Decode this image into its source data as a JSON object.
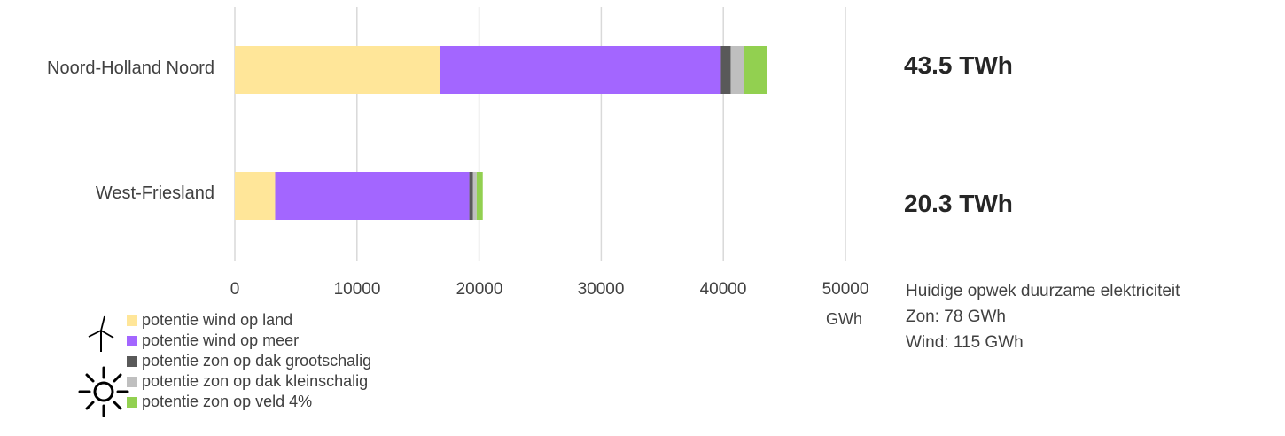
{
  "chart_data": {
    "type": "bar",
    "orientation": "horizontal",
    "stacked": true,
    "categories": [
      "Noord-Holland Noord",
      "West-Friesland"
    ],
    "series": [
      {
        "name": "potentie wind op land",
        "color": "#FFE699",
        "values": [
          16800,
          3300
        ]
      },
      {
        "name": "potentie wind op meer",
        "color": "#A366FF",
        "values": [
          23000,
          15900
        ]
      },
      {
        "name": "potentie zon op dak grootschalig",
        "color": "#595959",
        "values": [
          800,
          300
        ]
      },
      {
        "name": "potentie zon op dak kleinschalig",
        "color": "#BFBFBF",
        "values": [
          1100,
          300
        ]
      },
      {
        "name": "potentie zon op veld 4%",
        "color": "#92D050",
        "values": [
          1900,
          500
        ]
      }
    ],
    "xlim": [
      0,
      50000
    ],
    "xticks": [
      "0",
      "10000",
      "20000",
      "30000",
      "40000",
      "50000"
    ],
    "xunit": "GWh",
    "totals": [
      "43.5 TWh",
      "20.3 TWh"
    ],
    "grid": true,
    "legend_position": "bottom-left"
  },
  "current": {
    "title": "Huidige opwek duurzame elektriciteit",
    "zon": "Zon:  78 GWh",
    "wind": "Wind: 115 GWh"
  },
  "icons": {
    "wind": "wind-turbine-icon",
    "sun": "sun-icon"
  }
}
